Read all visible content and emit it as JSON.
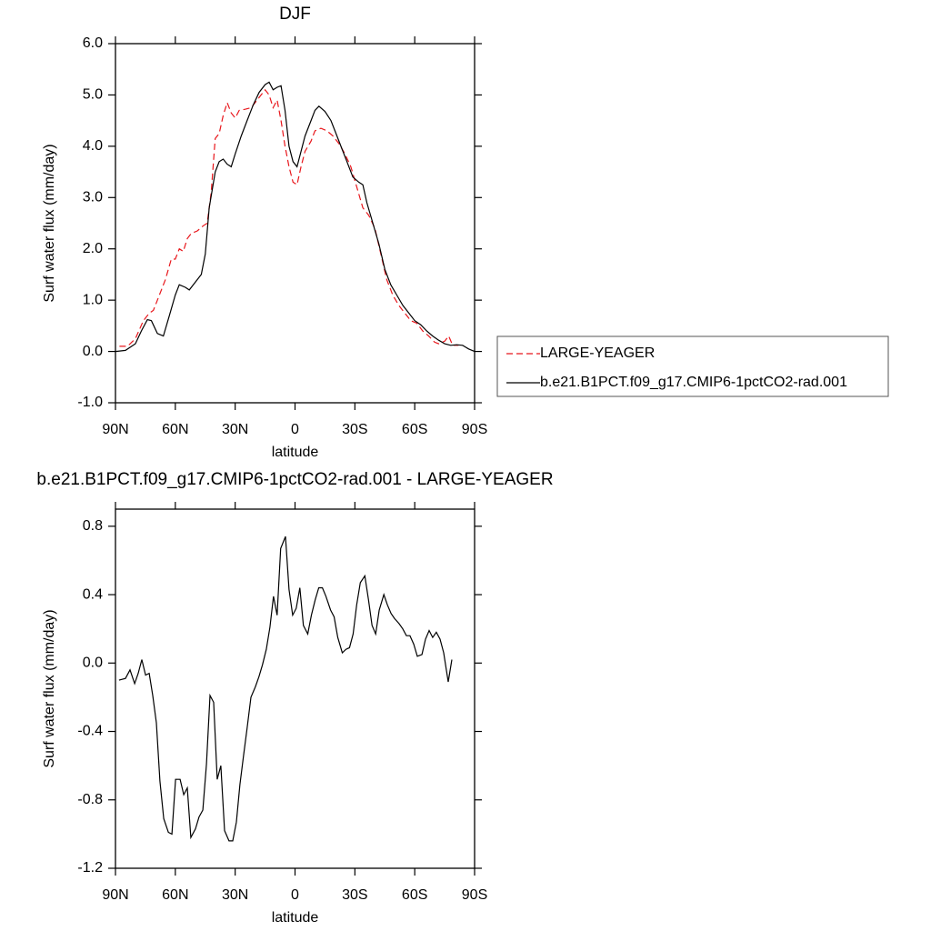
{
  "chart_data": [
    {
      "type": "line",
      "title": "DJF",
      "xlabel": "latitude",
      "ylabel": "Surf water flux (mm/day)",
      "xlim": [
        90,
        -90
      ],
      "xticks": [
        {
          "value": 90,
          "label": "90N"
        },
        {
          "value": 60,
          "label": "60N"
        },
        {
          "value": 30,
          "label": "30N"
        },
        0,
        {
          "value": -30,
          "label": "30S"
        },
        {
          "value": -60,
          "label": "60S"
        },
        {
          "value": -90,
          "label": "90S"
        }
      ],
      "ylim": [
        -1,
        6
      ],
      "yticks": [
        {
          "value": -1,
          "label": "-1.0"
        },
        {
          "value": 0,
          "label": "0.0"
        },
        {
          "value": 1,
          "label": "1.0"
        },
        {
          "value": 2,
          "label": "2.0"
        },
        {
          "value": 3,
          "label": "3.0"
        },
        {
          "value": 4,
          "label": "4.0"
        },
        {
          "value": 5,
          "label": "5.0"
        },
        {
          "value": 6,
          "label": "6.0"
        }
      ],
      "legend": "right",
      "series": [
        {
          "name": "LARGE-YEAGER",
          "color": "#e8161b",
          "dash": true,
          "x": [
            88,
            84,
            80,
            76,
            73,
            71,
            68,
            65,
            62,
            60,
            58,
            56,
            54,
            52,
            49,
            46,
            44,
            42,
            40,
            38,
            36,
            34,
            32,
            30,
            28,
            25,
            22,
            20,
            17,
            15,
            13,
            11,
            9,
            7,
            5,
            3,
            1,
            -1,
            -3,
            -5,
            -8,
            -10,
            -13,
            -16,
            -19,
            -22,
            -25,
            -28,
            -31,
            -34,
            -37,
            -40,
            -43,
            -46,
            -49,
            -52,
            -55,
            -58,
            -61,
            -64,
            -67,
            -70,
            -72,
            -75,
            -77,
            -79,
            -82
          ],
          "values": [
            0.1,
            0.1,
            0.25,
            0.6,
            0.75,
            0.8,
            1.1,
            1.4,
            1.8,
            1.8,
            2.0,
            1.95,
            2.2,
            2.3,
            2.35,
            2.45,
            2.5,
            3.1,
            4.15,
            4.25,
            4.6,
            4.85,
            4.65,
            4.55,
            4.7,
            4.72,
            4.75,
            4.85,
            5.0,
            5.1,
            5.0,
            4.75,
            4.9,
            4.5,
            4.0,
            3.6,
            3.3,
            3.25,
            3.6,
            3.9,
            4.1,
            4.3,
            4.35,
            4.3,
            4.2,
            4.05,
            3.85,
            3.6,
            3.2,
            2.8,
            2.65,
            2.4,
            1.9,
            1.4,
            1.1,
            0.9,
            0.75,
            0.6,
            0.55,
            0.4,
            0.3,
            0.18,
            0.15,
            0.2,
            0.3,
            0.12,
            0.12
          ]
        },
        {
          "name": "b.e21.B1PCT.f09_g17.CMIP6-1pctCO2-rad.001",
          "color": "#000000",
          "dash": false,
          "x": [
            90,
            85,
            80,
            77,
            74,
            72,
            69,
            66,
            63,
            60,
            58,
            55,
            53,
            50,
            47,
            45,
            43,
            40,
            38,
            36,
            34,
            32,
            30,
            27,
            24,
            21,
            18,
            15,
            13,
            11,
            9,
            7,
            5,
            3,
            1,
            -1,
            -3,
            -5,
            -8,
            -10,
            -12,
            -15,
            -18,
            -20,
            -23,
            -26,
            -29,
            -32,
            -34,
            -36,
            -39,
            -42,
            -45,
            -48,
            -51,
            -54,
            -57,
            -60,
            -63,
            -66,
            -69,
            -72,
            -75,
            -78,
            -81,
            -84,
            -87,
            -90
          ],
          "values": [
            0.0,
            0.02,
            0.15,
            0.4,
            0.62,
            0.6,
            0.35,
            0.3,
            0.7,
            1.1,
            1.3,
            1.25,
            1.2,
            1.35,
            1.5,
            1.9,
            2.8,
            3.5,
            3.7,
            3.75,
            3.65,
            3.6,
            3.85,
            4.2,
            4.5,
            4.8,
            5.05,
            5.2,
            5.25,
            5.1,
            5.15,
            5.18,
            4.7,
            4.0,
            3.7,
            3.6,
            3.9,
            4.2,
            4.5,
            4.7,
            4.78,
            4.68,
            4.5,
            4.3,
            4.0,
            3.7,
            3.4,
            3.3,
            3.25,
            2.9,
            2.5,
            2.1,
            1.6,
            1.3,
            1.1,
            0.9,
            0.75,
            0.6,
            0.52,
            0.4,
            0.3,
            0.22,
            0.15,
            0.12,
            0.13,
            0.12,
            0.05,
            0.0
          ]
        }
      ]
    },
    {
      "type": "line",
      "title": "b.e21.B1PCT.f09_g17.CMIP6-1pctCO2-rad.001 - LARGE-YEAGER",
      "xlabel": "latitude",
      "ylabel": "Surf water flux (mm/day)",
      "xlim": [
        90,
        -90
      ],
      "xticks": [
        {
          "value": 90,
          "label": "90N"
        },
        {
          "value": 60,
          "label": "60N"
        },
        {
          "value": 30,
          "label": "30N"
        },
        0,
        {
          "value": -30,
          "label": "30S"
        },
        {
          "value": -60,
          "label": "60S"
        },
        {
          "value": -90,
          "label": "90S"
        }
      ],
      "ylim": [
        -1.2,
        0.9
      ],
      "yticks": [
        -1.2,
        -0.8,
        -0.4,
        {
          "value": 0,
          "label": "0.0"
        },
        0.4,
        0.8
      ],
      "series": [
        {
          "color": "#000000",
          "dash": false,
          "x": [
            88.2,
            85.0,
            82.7,
            80.4,
            78.6,
            76.8,
            74.9,
            73.1,
            71.3,
            69.5,
            67.7,
            65.8,
            63.5,
            61.7,
            59.9,
            57.6,
            55.8,
            54.0,
            52.2,
            49.9,
            48.1,
            46.2,
            44.4,
            42.6,
            40.8,
            39.0,
            37.2,
            35.3,
            33.1,
            31.2,
            29.4,
            27.6,
            25.8,
            24.0,
            22.1,
            19.9,
            18.1,
            16.3,
            14.4,
            12.6,
            10.8,
            9.0,
            7.2,
            4.8,
            3.0,
            1.2,
            -0.6,
            -2.4,
            -4.2,
            -6.4,
            -8.2,
            -10.1,
            -11.9,
            -13.7,
            -15.5,
            -17.8,
            -19.6,
            -21.4,
            -23.7,
            -25.5,
            -27.3,
            -29.1,
            -30.9,
            -32.7,
            -35.0,
            -36.8,
            -38.6,
            -40.4,
            -42.2,
            -44.5,
            -46.3,
            -48.1,
            -49.9,
            -52.2,
            -54.0,
            -55.8,
            -57.6,
            -59.5,
            -61.3,
            -63.6,
            -65.4,
            -67.2,
            -69.0,
            -70.8,
            -72.7,
            -74.5,
            -76.8,
            -78.6
          ],
          "values": [
            -0.1,
            -0.09,
            -0.04,
            -0.12,
            -0.06,
            0.02,
            -0.07,
            -0.06,
            -0.19,
            -0.35,
            -0.69,
            -0.91,
            -0.99,
            -1.0,
            -0.68,
            -0.68,
            -0.77,
            -0.73,
            -1.02,
            -0.97,
            -0.9,
            -0.86,
            -0.59,
            -0.19,
            -0.23,
            -0.68,
            -0.6,
            -0.98,
            -1.04,
            -1.04,
            -0.93,
            -0.71,
            -0.54,
            -0.38,
            -0.2,
            -0.14,
            -0.08,
            -0.01,
            0.08,
            0.21,
            0.39,
            0.28,
            0.67,
            0.74,
            0.43,
            0.28,
            0.32,
            0.44,
            0.22,
            0.17,
            0.28,
            0.37,
            0.44,
            0.44,
            0.39,
            0.31,
            0.27,
            0.15,
            0.06,
            0.08,
            0.09,
            0.17,
            0.34,
            0.47,
            0.51,
            0.37,
            0.22,
            0.17,
            0.31,
            0.4,
            0.34,
            0.29,
            0.26,
            0.23,
            0.2,
            0.16,
            0.16,
            0.11,
            0.04,
            0.05,
            0.14,
            0.19,
            0.15,
            0.18,
            0.14,
            0.06,
            -0.11,
            0.02
          ]
        }
      ]
    }
  ]
}
